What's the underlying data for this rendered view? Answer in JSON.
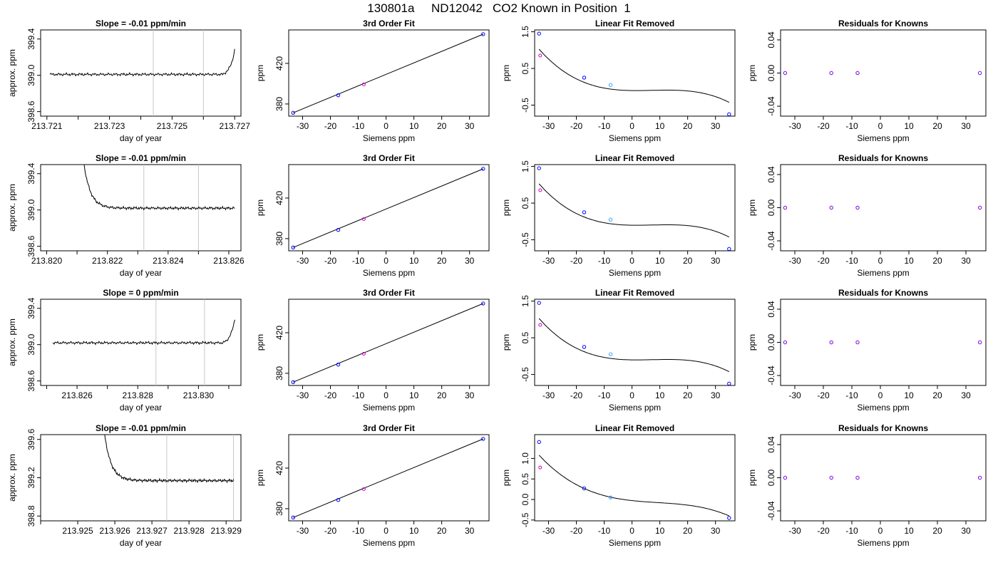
{
  "title": "130801a     ND12042   CO2 Known in Position  1",
  "colors": {
    "line": "#000000",
    "knowns": "#0000ff",
    "unknown": "#cc00cc",
    "marker": "#c8c8c8",
    "fitpoint": "#3aa0ff"
  },
  "chart_data": [
    {
      "type": "line",
      "title": "Slope =  -0.01  ppm/min",
      "xlabel": "day of year",
      "ylabel": "approx. ppm",
      "xlim": [
        213.7208,
        213.7272
      ],
      "ylim": [
        398.55,
        399.5
      ],
      "xticks": [
        213.721,
        213.722,
        213.723,
        213.724,
        213.725,
        213.726,
        213.727
      ],
      "xtick_labels": [
        "213.721",
        "",
        "213.723",
        "",
        "213.725",
        "",
        "213.727"
      ],
      "yticks": [
        398.6,
        399.0,
        399.4
      ],
      "ytick_labels": [
        "398.6",
        "399.0",
        "399.4"
      ],
      "vlines": [
        213.7244,
        213.726
      ],
      "trace": {
        "x_start": 213.7211,
        "x_end": 213.727,
        "base": 399.01,
        "pre": null,
        "post": {
          "x0": 213.7266,
          "tau": 0.00015,
          "amp": 0.02
        }
      }
    },
    {
      "type": "scatter",
      "title": "3rd Order Fit",
      "xlabel": "Siemens ppm",
      "ylabel": "ppm",
      "xlim": [
        -35.0,
        37.0
      ],
      "ylim": [
        368.0,
        453.0
      ],
      "xticks": [
        -30,
        -20,
        -10,
        0,
        10,
        20,
        30
      ],
      "yticks": [
        380,
        420
      ],
      "knowns": [
        [
          -33.4,
          371.3
        ],
        [
          -17.2,
          388.6
        ],
        [
          34.9,
          448.8
        ]
      ],
      "unknown": [
        -8.0,
        399.3
      ],
      "fit": {
        "kind": "linear",
        "x0": -33.4,
        "y0": 371.3,
        "x1": 34.9,
        "y1": 448.8
      }
    },
    {
      "type": "scatter",
      "title": "Linear Fit Removed",
      "xlabel": "Siemens ppm",
      "ylabel": "ppm",
      "xlim": [
        -35.0,
        37.0
      ],
      "ylim": [
        -0.8,
        1.55
      ],
      "xticks": [
        -30,
        -20,
        -10,
        0,
        10,
        20,
        30
      ],
      "yticks": [
        -0.5,
        0.5,
        1.5
      ],
      "knowns": [
        [
          -33.4,
          1.45
        ],
        [
          -17.2,
          0.25
        ],
        [
          -7.7,
          0.05
        ],
        [
          34.9,
          -0.75
        ]
      ],
      "unknown": [
        -33.0,
        0.85
      ],
      "fit": {
        "kind": "cubic",
        "coef": [
          -0.1024,
          -0.00115,
          0.000385,
          -1.77e-05
        ]
      }
    },
    {
      "type": "scatter",
      "title": "Residuals for Knowns",
      "xlabel": "Siemens ppm",
      "ylabel": "ppm",
      "xlim": [
        -35.0,
        37.0
      ],
      "ylim": [
        -0.052,
        0.052
      ],
      "xticks": [
        -30,
        -20,
        -10,
        0,
        10,
        20,
        30
      ],
      "yticks": [
        -0.04,
        0.0,
        0.04
      ],
      "ytick_labels": [
        "-0.04",
        "0.00",
        "0.04"
      ],
      "knowns": [
        [
          -33.4,
          0
        ],
        [
          -17.2,
          0
        ],
        [
          -8.0,
          0
        ],
        [
          34.9,
          0
        ]
      ],
      "unknown": null
    },
    {
      "type": "line",
      "title": "Slope =  -0.01  ppm/min",
      "xlabel": "day of year",
      "ylabel": "approx. ppm",
      "xlim": [
        213.8198,
        213.8264
      ],
      "ylim": [
        398.55,
        399.5
      ],
      "xticks": [
        213.82,
        213.821,
        213.822,
        213.823,
        213.824,
        213.825,
        213.826
      ],
      "xtick_labels": [
        "213.820",
        "",
        "213.822",
        "",
        "213.824",
        "",
        "213.826"
      ],
      "yticks": [
        398.6,
        399.0,
        399.4
      ],
      "ytick_labels": [
        "398.6",
        "399.0",
        "399.4"
      ],
      "vlines": [
        213.8232,
        213.825
      ],
      "trace": {
        "x_start": 213.8212,
        "x_end": 213.8262,
        "base": 399.02,
        "pre": {
          "x0": 213.8212,
          "tau": 0.00022,
          "amp": 0.55
        },
        "post": null
      }
    },
    {
      "type": "scatter",
      "title": "3rd Order Fit",
      "xlabel": "Siemens ppm",
      "ylabel": "ppm",
      "xlim": [
        -35.0,
        37.0
      ],
      "ylim": [
        368.0,
        453.0
      ],
      "xticks": [
        -30,
        -20,
        -10,
        0,
        10,
        20,
        30
      ],
      "yticks": [
        380,
        420
      ],
      "knowns": [
        [
          -33.4,
          371.3
        ],
        [
          -17.2,
          388.6
        ],
        [
          34.9,
          448.8
        ]
      ],
      "unknown": [
        -8.0,
        399.3
      ],
      "fit": {
        "kind": "linear",
        "x0": -33.4,
        "y0": 371.3,
        "x1": 34.9,
        "y1": 448.8
      }
    },
    {
      "type": "scatter",
      "title": "Linear Fit Removed",
      "xlabel": "Siemens ppm",
      "ylabel": "ppm",
      "xlim": [
        -35.0,
        37.0
      ],
      "ylim": [
        -0.8,
        1.55
      ],
      "xticks": [
        -30,
        -20,
        -10,
        0,
        10,
        20,
        30
      ],
      "yticks": [
        -0.5,
        0.5,
        1.5
      ],
      "knowns": [
        [
          -33.4,
          1.45
        ],
        [
          -17.2,
          0.25
        ],
        [
          -7.7,
          0.05
        ],
        [
          34.9,
          -0.75
        ]
      ],
      "unknown": [
        -33.0,
        0.85
      ],
      "fit": {
        "kind": "cubic",
        "coef": [
          -0.1024,
          -0.00115,
          0.000385,
          -1.77e-05
        ]
      }
    },
    {
      "type": "scatter",
      "title": "Residuals for Knowns",
      "xlabel": "Siemens ppm",
      "ylabel": "ppm",
      "xlim": [
        -35.0,
        37.0
      ],
      "ylim": [
        -0.052,
        0.052
      ],
      "xticks": [
        -30,
        -20,
        -10,
        0,
        10,
        20,
        30
      ],
      "yticks": [
        -0.04,
        0.0,
        0.04
      ],
      "ytick_labels": [
        "-0.04",
        "0.00",
        "0.04"
      ],
      "knowns": [
        [
          -33.4,
          0
        ],
        [
          -17.2,
          0
        ],
        [
          -8.0,
          0
        ],
        [
          34.9,
          0
        ]
      ],
      "unknown": null
    },
    {
      "type": "line",
      "title": "Slope =  0  ppm/min",
      "xlabel": "day of year",
      "ylabel": "approx. ppm",
      "xlim": [
        213.8248,
        213.8314
      ],
      "ylim": [
        398.55,
        399.5
      ],
      "xticks": [
        213.825,
        213.826,
        213.827,
        213.828,
        213.829,
        213.83,
        213.831
      ],
      "xtick_labels": [
        "",
        "213.826",
        "",
        "213.828",
        "",
        "213.830",
        ""
      ],
      "yticks": [
        398.6,
        399.0,
        399.4
      ],
      "ytick_labels": [
        "398.6",
        "399.0",
        "399.4"
      ],
      "vlines": [
        213.8286,
        213.8302
      ],
      "trace": {
        "x_start": 213.8252,
        "x_end": 213.8312,
        "base": 399.02,
        "pre": null,
        "post": {
          "x0": 213.8308,
          "tau": 0.00015,
          "amp": 0.02
        }
      }
    },
    {
      "type": "scatter",
      "title": "3rd Order Fit",
      "xlabel": "Siemens ppm",
      "ylabel": "ppm",
      "xlim": [
        -35.0,
        37.0
      ],
      "ylim": [
        368.0,
        453.0
      ],
      "xticks": [
        -30,
        -20,
        -10,
        0,
        10,
        20,
        30
      ],
      "yticks": [
        380,
        420
      ],
      "knowns": [
        [
          -33.4,
          371.3
        ],
        [
          -17.2,
          388.6
        ],
        [
          34.9,
          448.8
        ]
      ],
      "unknown": [
        -8.0,
        399.3
      ],
      "fit": {
        "kind": "linear",
        "x0": -33.4,
        "y0": 371.3,
        "x1": 34.9,
        "y1": 448.8
      }
    },
    {
      "type": "scatter",
      "title": "Linear Fit Removed",
      "xlabel": "Siemens ppm",
      "ylabel": "ppm",
      "xlim": [
        -35.0,
        37.0
      ],
      "ylim": [
        -0.8,
        1.55
      ],
      "xticks": [
        -30,
        -20,
        -10,
        0,
        10,
        20,
        30
      ],
      "yticks": [
        -0.5,
        0.5,
        1.5
      ],
      "knowns": [
        [
          -33.4,
          1.45
        ],
        [
          -17.2,
          0.25
        ],
        [
          -7.7,
          0.05
        ],
        [
          34.9,
          -0.75
        ]
      ],
      "unknown": [
        -33.0,
        0.85
      ],
      "fit": {
        "kind": "cubic",
        "coef": [
          -0.1024,
          -0.00115,
          0.000385,
          -1.77e-05
        ]
      }
    },
    {
      "type": "scatter",
      "title": "Residuals for Knowns",
      "xlabel": "Siemens ppm",
      "ylabel": "ppm",
      "xlim": [
        -35.0,
        37.0
      ],
      "ylim": [
        -0.052,
        0.052
      ],
      "xticks": [
        -30,
        -20,
        -10,
        0,
        10,
        20,
        30
      ],
      "yticks": [
        -0.04,
        0.0,
        0.04
      ],
      "ytick_labels": [
        "-0.04",
        "0.00",
        "0.04"
      ],
      "knowns": [
        [
          -33.4,
          0
        ],
        [
          -17.2,
          0
        ],
        [
          -8.0,
          0
        ],
        [
          34.9,
          0
        ]
      ],
      "unknown": null
    },
    {
      "type": "line",
      "title": "Slope =  -0.01  ppm/min",
      "xlabel": "day of year",
      "ylabel": "approx. ppm",
      "xlim": [
        213.924,
        213.9294
      ],
      "ylim": [
        398.75,
        399.65
      ],
      "xticks": [
        213.924,
        213.925,
        213.926,
        213.927,
        213.928,
        213.929
      ],
      "xtick_labels": [
        "",
        "213.925",
        "213.926",
        "213.927",
        "213.928",
        "213.929"
      ],
      "yticks": [
        398.8,
        399.2,
        399.6
      ],
      "ytick_labels": [
        "398.8",
        "399.2",
        "399.6"
      ],
      "vlines": [
        213.9274,
        213.9292
      ],
      "trace": {
        "x_start": 213.9257,
        "x_end": 213.9292,
        "base": 399.17,
        "pre": {
          "x0": 213.9257,
          "tau": 0.00018,
          "amp": 0.55
        },
        "post": null
      }
    },
    {
      "type": "scatter",
      "title": "3rd Order Fit",
      "xlabel": "Siemens ppm",
      "ylabel": "ppm",
      "xlim": [
        -35.0,
        37.0
      ],
      "ylim": [
        368.0,
        453.0
      ],
      "xticks": [
        -30,
        -20,
        -10,
        0,
        10,
        20,
        30
      ],
      "yticks": [
        380,
        420
      ],
      "knowns": [
        [
          -33.4,
          371.3
        ],
        [
          -17.2,
          388.6
        ],
        [
          34.9,
          448.8
        ]
      ],
      "unknown": [
        -8.0,
        399.3
      ],
      "fit": {
        "kind": "linear",
        "x0": -33.4,
        "y0": 371.3,
        "x1": 34.9,
        "y1": 448.8
      }
    },
    {
      "type": "scatter",
      "title": "Linear Fit Removed",
      "xlabel": "Siemens ppm",
      "ylabel": "ppm",
      "xlim": [
        -35.0,
        37.0
      ],
      "ylim": [
        -0.52,
        1.58
      ],
      "xticks": [
        -30,
        -20,
        -10,
        0,
        10,
        20,
        30
      ],
      "yticks": [
        -0.5,
        0.0,
        0.5,
        1.0
      ],
      "ytick_labels": [
        "-0.5",
        "0.0",
        "0.5",
        "1.0"
      ],
      "knowns": [
        [
          -33.4,
          1.4
        ],
        [
          -17.2,
          0.27
        ],
        [
          -7.7,
          0.05
        ],
        [
          34.9,
          -0.45
        ]
      ],
      "unknown": [
        -33.0,
        0.78
      ],
      "fit": {
        "kind": "cubic",
        "coef": [
          -0.0265,
          -0.00745,
          0.000347,
          -1.26e-05
        ]
      }
    },
    {
      "type": "scatter",
      "title": "Residuals for Knowns",
      "xlabel": "Siemens ppm",
      "ylabel": "ppm",
      "xlim": [
        -35.0,
        37.0
      ],
      "ylim": [
        -0.052,
        0.052
      ],
      "xticks": [
        -30,
        -20,
        -10,
        0,
        10,
        20,
        30
      ],
      "yticks": [
        -0.04,
        0.0,
        0.04
      ],
      "ytick_labels": [
        "-0.04",
        "0.00",
        "0.04"
      ],
      "knowns": [
        [
          -33.4,
          0
        ],
        [
          -17.2,
          0
        ],
        [
          -8.0,
          0
        ],
        [
          34.9,
          0
        ]
      ],
      "unknown": null
    }
  ]
}
